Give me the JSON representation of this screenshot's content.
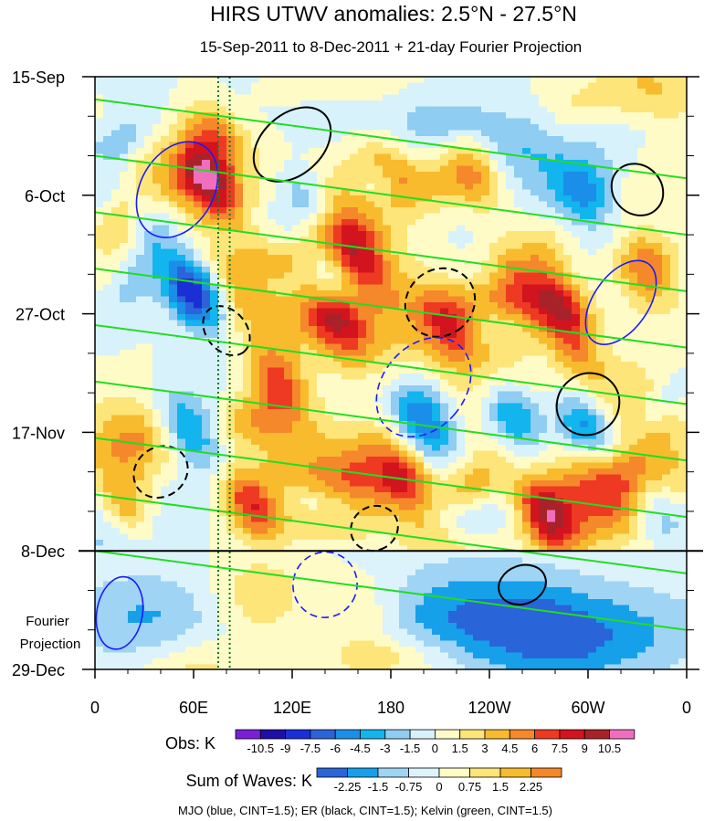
{
  "chart_data": {
    "type": "heatmap",
    "title": "HIRS UTWV anomalies: 2.5°N - 27.5°N",
    "subtitle": "15-Sep-2011 to 8-Dec-2011 + 21-day Fourier Projection",
    "x_tick_labels": [
      "0",
      "60E",
      "120E",
      "180",
      "120W",
      "60W",
      "0"
    ],
    "x_tick_lons": [
      0,
      60,
      120,
      180,
      240,
      300,
      360
    ],
    "y_tick_labels": [
      "15-Sep",
      "6-Oct",
      "27-Oct",
      "17-Nov",
      "8-Dec",
      "29-Dec"
    ],
    "y_tick_days": [
      0,
      21,
      42,
      63,
      84,
      105
    ],
    "xlim": [
      0,
      360
    ],
    "ylim_days": [
      0,
      105
    ],
    "observation_end_day": 84,
    "projection_label_lines": [
      "Fourier",
      "Projection"
    ],
    "obs_colorbar": {
      "label": "Obs: K",
      "levels": [
        -10.5,
        -9,
        -7.5,
        -6,
        -4.5,
        -3,
        -1.5,
        0,
        1.5,
        3,
        4.5,
        6,
        7.5,
        9,
        10.5
      ],
      "level_labels": [
        "-10.5",
        "-9",
        "-7.5",
        "-6",
        "-4.5",
        "-3",
        "-1.5",
        "0",
        "1.5",
        "3",
        "4.5",
        "6",
        "7.5",
        "9",
        "10.5"
      ],
      "colors": [
        "#7a1fd6",
        "#1d0fa8",
        "#1a2fd6",
        "#2d63d8",
        "#1a8ee8",
        "#12b5ee",
        "#8fcdf2",
        "#d8f2fb",
        "#fffbc7",
        "#fde57a",
        "#f8bb2e",
        "#f5882a",
        "#ee3a22",
        "#d2141f",
        "#a8222a",
        "#ef6fbe"
      ]
    },
    "waves_colorbar": {
      "label": "Sum of Waves: K",
      "levels": [
        -2.25,
        -1.5,
        -0.75,
        0,
        0.75,
        1.5,
        2.25
      ],
      "level_labels": [
        "-2.25",
        "-1.5",
        "-0.75",
        "0",
        "0.75",
        "1.5",
        "2.25"
      ],
      "colors": [
        "#2a64d9",
        "#16a0ea",
        "#9fd4f4",
        "#ddf3fb",
        "#fffbc7",
        "#fde57a",
        "#f8bb2e",
        "#f5882a"
      ]
    },
    "footer": "MJO (blue, CINT=1.5); ER (black, CINT=1.5); Kelvin (green, CINT=1.5)",
    "contour_series": [
      {
        "name": "MJO",
        "color": "#1a1aff",
        "cint": 1.5
      },
      {
        "name": "ER",
        "color": "#000000",
        "cint": 1.5
      },
      {
        "name": "Kelvin",
        "color": "#22dd22",
        "cint": 1.5
      }
    ],
    "reference_lons": [
      75,
      82
    ]
  }
}
